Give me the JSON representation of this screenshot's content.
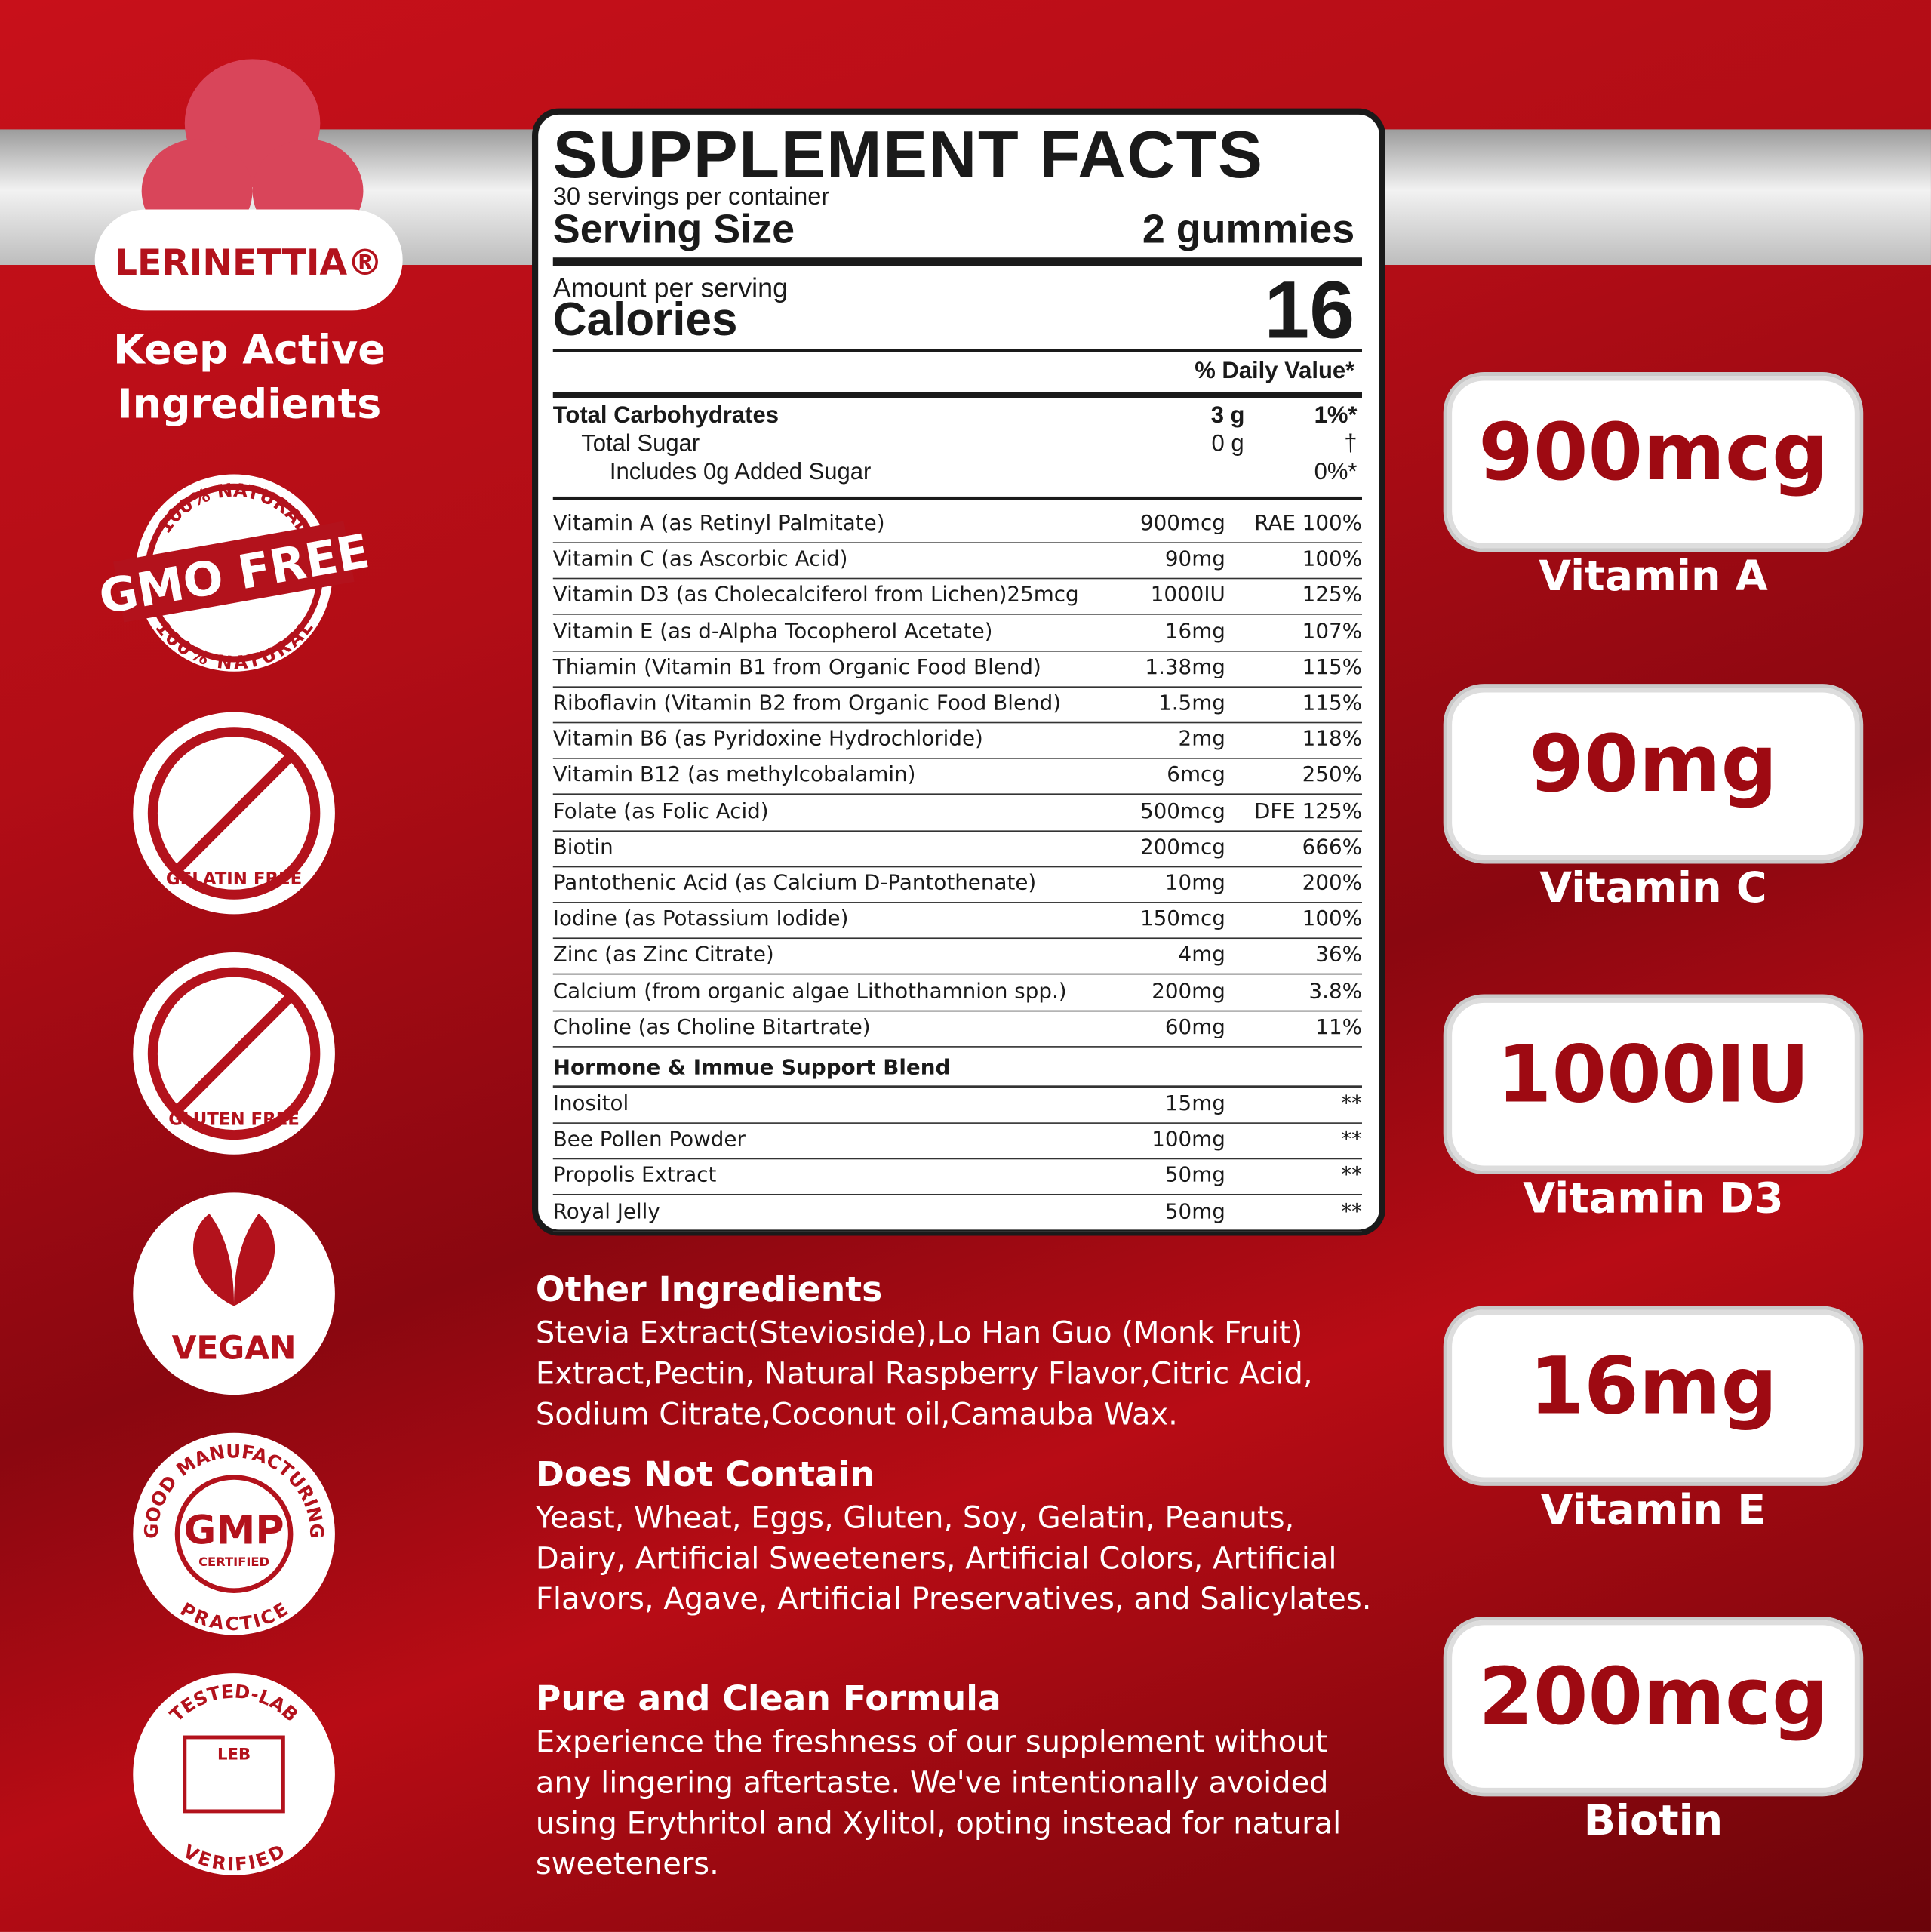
{
  "brand": {
    "name": "LERINETTIA®",
    "tagline": "Keep Active Ingredients"
  },
  "badges": {
    "gmo": {
      "top": "100% NATURAL",
      "center": "GMO FREE",
      "bottom": "100% NATURAL"
    },
    "gelatin": "GELATIN FREE",
    "gluten": "GLUTEN FREE",
    "vegan": "VEGAN",
    "gmp": {
      "top": "GOOD MANUFACTURING",
      "center": "GMP",
      "sub": "CERTIFIED",
      "bottom": "PRACTICE"
    },
    "lab": {
      "top": "TESTED-LAB",
      "center": "LEB",
      "bottom": "VERIFIED"
    }
  },
  "facts": {
    "title": "SUPPLEMENT FACTS",
    "servings": "30 servings per container",
    "serving_size_label": "Serving Size",
    "serving_size_value": "2 gummies",
    "amount_per_serving": "Amount per serving",
    "calories_label": "Calories",
    "calories_value": "16",
    "dv_header": "% Daily Value*",
    "carbs": [
      {
        "name": "Total Carbohydrates",
        "amount": "3 g",
        "dv": "1%*"
      },
      {
        "name": "Total Sugar",
        "amount": "0 g",
        "dv": "†"
      },
      {
        "name": "Includes 0g Added Sugar",
        "dv": "0%*"
      }
    ],
    "rows": [
      [
        "Vitamin A (as Retinyl Palmitate)",
        "900mcg",
        "RAE 100%"
      ],
      [
        "Vitamin C (as Ascorbic Acid)",
        "90mg",
        "100%"
      ],
      [
        "Vitamin D3 (as Cholecalciferol from Lichen)25mcg",
        "1000IU",
        "125%"
      ],
      [
        "Vitamin E (as d-Alpha Tocopherol Acetate)",
        "16mg",
        "107%"
      ],
      [
        "Thiamin (Vitamin B1 from Organic Food Blend)",
        "1.38mg",
        "115%"
      ],
      [
        "Riboflavin (Vitamin B2 from Organic Food Blend)",
        "1.5mg",
        "115%"
      ],
      [
        "Vitamin B6 (as Pyridoxine Hydrochloride)",
        "2mg",
        "118%"
      ],
      [
        "Vitamin B12 (as methylcobalamin)",
        "6mcg",
        "250%"
      ],
      [
        "Folate (as Folic Acid)",
        "500mcg",
        "DFE 125%"
      ],
      [
        "Biotin",
        "200mcg",
        "666%"
      ],
      [
        "Pantothenic Acid (as Calcium D-Pantothenate)",
        "10mg",
        "200%"
      ],
      [
        "Iodine (as Potassium Iodide)",
        "150mcg",
        "100%"
      ],
      [
        "Zinc (as Zinc Citrate)",
        "4mg",
        "36%"
      ],
      [
        "Calcium (from organic algae Lithothamnion spp.)",
        "200mg",
        "3.8%"
      ],
      [
        "Choline (as Choline Bitartrate)",
        "60mg",
        "11%"
      ]
    ],
    "blend_title": "Hormone & Immue Support Blend",
    "blend": [
      [
        "Inositol",
        "15mg",
        "**"
      ],
      [
        "Bee Pollen Powder",
        "100mg",
        "**"
      ],
      [
        "Propolis Extract",
        "50mg",
        "**"
      ],
      [
        "Royal Jelly",
        "50mg",
        "**"
      ]
    ]
  },
  "sections": [
    {
      "title": "Other Ingredients",
      "text": "Stevia Extract(Stevioside),Lo Han Guo (Monk Fruit) Extract,Pectin, Natural Raspberry Flavor,Citric Acid, Sodium Citrate,Coconut oil,Camauba Wax."
    },
    {
      "title": "Does Not Contain",
      "text": "Yeast, Wheat, Eggs, Gluten, Soy, Gelatin, Peanuts, Dairy, Artificial Sweeteners, Artificial Colors, Artificial Flavors, Agave, Artificial Preservatives, and Salicylates."
    },
    {
      "title": "Pure and Clean Formula",
      "text": "Experience the freshness of our supplement without any lingering aftertaste. We've intentionally avoided using Erythritol and Xylitol, opting instead for natural sweeteners."
    }
  ],
  "callouts": [
    {
      "value": "900mcg",
      "label": "Vitamin A"
    },
    {
      "value": "90mg",
      "label": "Vitamin C"
    },
    {
      "value": "1000IU",
      "label": "Vitamin D3"
    },
    {
      "value": "16mg",
      "label": "Vitamin E"
    },
    {
      "value": "200mcg",
      "label": "Biotin"
    }
  ]
}
